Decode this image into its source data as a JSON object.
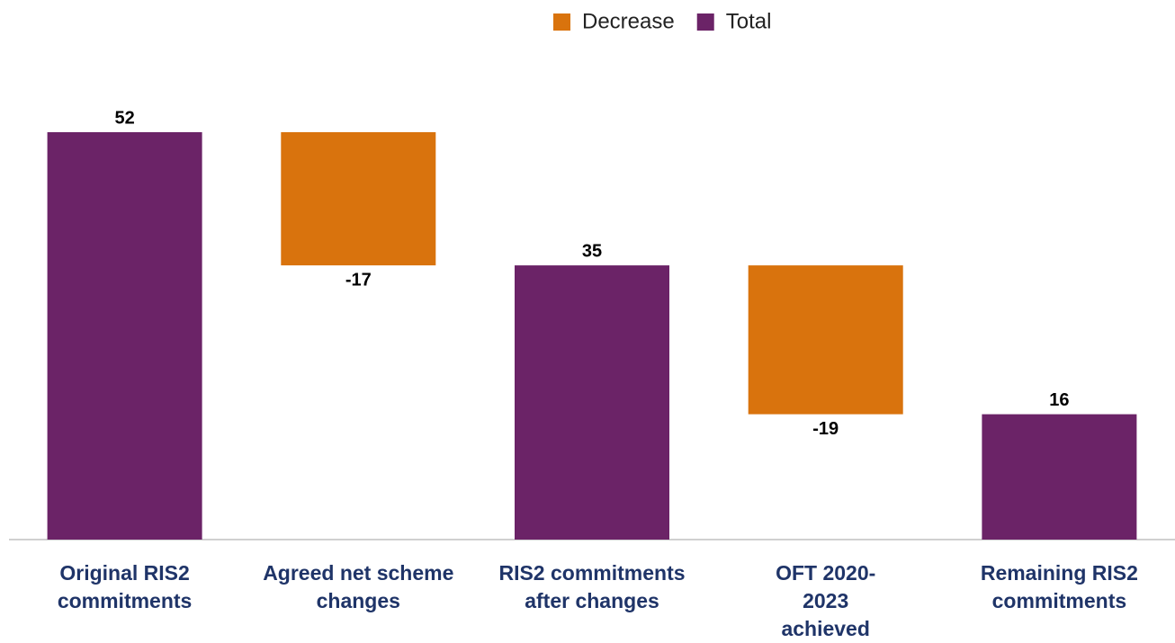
{
  "chart_data": {
    "type": "waterfall",
    "categories": [
      "Original RIS2 commitments",
      "Agreed net scheme changes",
      "RIS2 commitments after changes",
      "OFT 2020-2023 achieved",
      "Remaining RIS2 commitments"
    ],
    "series": [
      {
        "name": "Decrease",
        "color": "#d9730d",
        "values": [
          null,
          -17,
          null,
          -19,
          null
        ]
      },
      {
        "name": "Total",
        "color": "#6b2367",
        "values": [
          52,
          null,
          35,
          null,
          16
        ]
      }
    ]
  }
}
